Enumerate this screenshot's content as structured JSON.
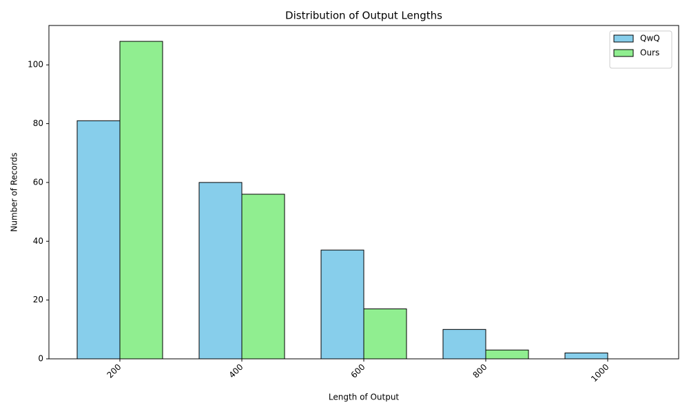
{
  "chart_data": {
    "type": "grouped-bar",
    "title": "Distribution of Output Lengths",
    "x_label": "Length of Output",
    "y_label": "Number of Records",
    "categories": [
      "200",
      "400",
      "600",
      "800",
      "1000"
    ],
    "series": [
      {
        "name": "QwQ",
        "color": "#87ceeb",
        "values": [
          81,
          60,
          37,
          10,
          2
        ]
      },
      {
        "name": "Ours",
        "color": "#90ee90",
        "values": [
          108,
          56,
          17,
          3,
          0
        ]
      }
    ],
    "ylim": [
      0,
      113.4
    ],
    "yticks": [
      0,
      20,
      40,
      60,
      80,
      100
    ],
    "grid": false,
    "legend": "upper-right"
  }
}
